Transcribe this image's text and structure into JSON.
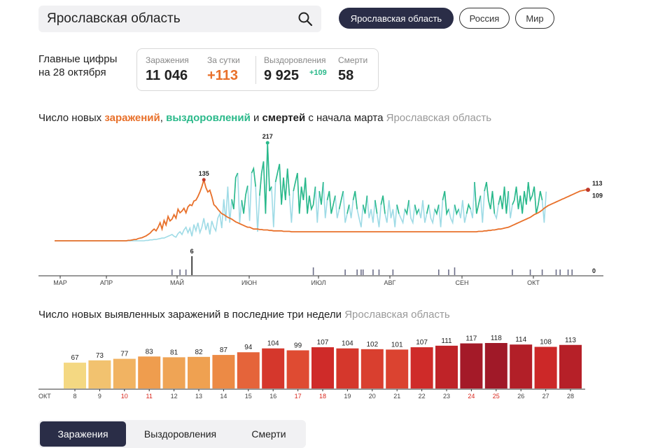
{
  "search": {
    "value": "Ярославская область"
  },
  "regions": [
    "Ярославская область",
    "Россия",
    "Мир"
  ],
  "main_figures": {
    "title_line1": "Главные цифры",
    "title_line2": "на 28 октября",
    "infections_label": "Заражения",
    "infections_value": "11 046",
    "per_day_label": "За сутки",
    "per_day_value": "+113",
    "recoveries_label": "Выздоровления",
    "recoveries_value": "9 925",
    "recoveries_delta": "+109",
    "deaths_label": "Смерти",
    "deaths_value": "58"
  },
  "line_section": {
    "t1": "Число новых ",
    "t2": "заражений",
    "t3": ", ",
    "t4": "выздоровлений",
    "t5": " и ",
    "t6": "смертей",
    "t7": " с начала марта",
    "region": "Ярославская область"
  },
  "bar_section": {
    "title": "Число новых выявленных заражений в последние три недели",
    "region": "Ярославская область"
  },
  "tabs": [
    "Заражения",
    "Выздоровления",
    "Смерти"
  ],
  "colors": {
    "infections": "#e8702a",
    "recoveries": "#2ab98a",
    "recoveries_light": "#9fdbe6",
    "deaths": "#6c6e88",
    "nav": "#2a2d47"
  },
  "chart_data": [
    {
      "type": "line",
      "x_ticks": [
        "МАР",
        "АПР",
        "МАЙ",
        "ИЮН",
        "ИЮЛ",
        "АВГ",
        "СЕН",
        "ОКТ"
      ],
      "series": [
        {
          "name": "заражений",
          "values": [
            0,
            0,
            0,
            0,
            0,
            0,
            0,
            0,
            0,
            0,
            0,
            0,
            0,
            0,
            0,
            0,
            0,
            0,
            0,
            0,
            0,
            0,
            0,
            0,
            0,
            0,
            0,
            0,
            0,
            0,
            0,
            0,
            0,
            0,
            0,
            0,
            0,
            1,
            1,
            2,
            3,
            3,
            5,
            6,
            7,
            9,
            11,
            14,
            17,
            22,
            26,
            22,
            30,
            40,
            26,
            45,
            35,
            54,
            44,
            48,
            58,
            50,
            70,
            62,
            66,
            72,
            62,
            75,
            80,
            78,
            88,
            90,
            98,
            108,
            120,
            135,
            118,
            108,
            112,
            98,
            80,
            76,
            70,
            65,
            60,
            58,
            55,
            52,
            50,
            48,
            45,
            42,
            40,
            38,
            36,
            34,
            32,
            30,
            30,
            28,
            26,
            26,
            26,
            25,
            25,
            24,
            24,
            24,
            23,
            23,
            22,
            22,
            22,
            22,
            22,
            21,
            21,
            21,
            21,
            20,
            20,
            20,
            20,
            20,
            20,
            20,
            20,
            20,
            20,
            20,
            20,
            20,
            20,
            20,
            20,
            20,
            20,
            20,
            20,
            20,
            20,
            20,
            20,
            20,
            20,
            20,
            20,
            20,
            20,
            20,
            20,
            20,
            20,
            20,
            20,
            20,
            20,
            20,
            20,
            20,
            20,
            20,
            20,
            20,
            20,
            20,
            20,
            20,
            20,
            20,
            20,
            20,
            20,
            20,
            20,
            20,
            20,
            20,
            20,
            20,
            20,
            20,
            20,
            20,
            20,
            20,
            20,
            20,
            20,
            20,
            20,
            20,
            20,
            20,
            20,
            20,
            20,
            20,
            20,
            20,
            20,
            20,
            20,
            20,
            20,
            20,
            20,
            20,
            20,
            20,
            20,
            20,
            20,
            21,
            21,
            21,
            22,
            22,
            23,
            23,
            24,
            24,
            25,
            26,
            26,
            27,
            28,
            29,
            30,
            32,
            34,
            36,
            38,
            40,
            42,
            44,
            46,
            48,
            50,
            52,
            55,
            58,
            60,
            62,
            65,
            68,
            72,
            75,
            78,
            80,
            82,
            84,
            86,
            88,
            90,
            92,
            94,
            96,
            98,
            100,
            102,
            104,
            106,
            108,
            110,
            111,
            112,
            113,
            113
          ]
        },
        {
          "name": "выздоровлений",
          "values": [
            0,
            0,
            0,
            0,
            0,
            0,
            0,
            0,
            0,
            0,
            0,
            0,
            0,
            0,
            0,
            0,
            0,
            0,
            0,
            0,
            0,
            0,
            0,
            0,
            0,
            0,
            0,
            0,
            0,
            0,
            0,
            0,
            0,
            0,
            0,
            0,
            0,
            0,
            0,
            0,
            0,
            0,
            0,
            0,
            0,
            0,
            1,
            1,
            2,
            2,
            3,
            3,
            4,
            5,
            6,
            6,
            8,
            10,
            12,
            14,
            10,
            8,
            16,
            20,
            14,
            24,
            30,
            18,
            28,
            10,
            36,
            22,
            40,
            18,
            30,
            50,
            24,
            40,
            14,
            44,
            30,
            22,
            50,
            60,
            28,
            92,
            44,
            120,
            40,
            92,
            70,
            140,
            150,
            40,
            90,
            60,
            102,
            122,
            44,
            150,
            160,
            120,
            20,
            100,
            150,
            176,
            60,
            217,
            110,
            120,
            30,
            130,
            150,
            170,
            80,
            140,
            90,
            160,
            100,
            40,
            110,
            130,
            150,
            60,
            120,
            90,
            140,
            60,
            100,
            70,
            80,
            120,
            40,
            110,
            80,
            130,
            50,
            90,
            110,
            60,
            80,
            100,
            50,
            70,
            90,
            110,
            40,
            60,
            80,
            50,
            90,
            110,
            70,
            50,
            30,
            80,
            60,
            100,
            50,
            70,
            40,
            90,
            60,
            30,
            80,
            100,
            60,
            40,
            90,
            50,
            70,
            30,
            80,
            60,
            50,
            40,
            70,
            60,
            90,
            50,
            40,
            80,
            60,
            70,
            50,
            90,
            40,
            60,
            80,
            50,
            40,
            70,
            60,
            80,
            30,
            90,
            110,
            60,
            70,
            50,
            40,
            80,
            60,
            70,
            50,
            90,
            40,
            60,
            80,
            70,
            50,
            130,
            60,
            80,
            100,
            40,
            110,
            130,
            90,
            70,
            110,
            60,
            50,
            80,
            100,
            70,
            120,
            60,
            110,
            50,
            80,
            90,
            120,
            70,
            100,
            60,
            110,
            80,
            130,
            90,
            100,
            120,
            60,
            80,
            110,
            90,
            40,
            109
          ]
        },
        {
          "name": "смертей",
          "values": [
            0,
            0,
            0,
            0,
            0,
            0,
            0,
            0,
            0,
            0,
            0,
            0,
            0,
            0,
            0,
            0,
            0,
            0,
            0,
            0,
            0,
            0,
            0,
            0,
            0,
            0,
            0,
            0,
            0,
            0,
            0,
            0,
            0,
            0,
            0,
            0,
            0,
            0,
            0,
            0,
            0,
            0,
            0,
            0,
            0,
            0,
            0,
            0,
            0,
            0,
            0,
            0,
            0,
            0,
            0,
            0,
            0,
            0,
            0,
            1,
            0,
            0,
            0,
            1,
            0,
            0,
            1,
            0,
            0,
            6,
            0,
            0,
            0,
            0,
            0,
            0,
            0,
            0,
            0,
            0,
            0,
            0,
            0,
            0,
            0,
            0,
            0,
            0,
            0,
            0,
            0,
            0,
            0,
            0,
            0,
            0,
            0,
            0,
            0,
            0,
            0,
            0,
            0,
            0,
            0,
            0,
            0,
            0,
            0,
            0,
            0,
            0,
            0,
            0,
            0,
            0,
            0,
            0,
            0,
            0,
            0,
            0,
            0,
            0,
            0,
            0,
            0,
            0,
            0,
            0,
            2,
            0,
            0,
            0,
            0,
            0,
            0,
            0,
            0,
            0,
            0,
            0,
            0,
            0,
            0,
            0,
            1,
            0,
            0,
            0,
            0,
            0,
            1,
            0,
            1,
            1,
            0,
            0,
            0,
            0,
            1,
            0,
            0,
            1,
            0,
            0,
            0,
            0,
            0,
            0,
            1,
            0,
            0,
            0,
            0,
            0,
            0,
            0,
            0,
            0,
            0,
            0,
            0,
            0,
            0,
            0,
            0,
            0,
            0,
            0,
            0,
            0,
            0,
            1,
            0,
            0,
            0,
            0,
            1,
            0,
            0,
            2,
            0,
            0,
            0,
            0,
            0,
            0,
            0,
            0,
            0,
            0,
            0,
            0,
            0,
            0,
            0,
            0,
            0,
            0,
            0,
            0,
            0,
            0,
            0,
            0,
            0,
            0,
            0,
            0,
            1,
            0,
            0,
            0,
            0,
            0,
            0,
            0,
            0,
            1,
            0,
            0,
            0,
            0,
            0,
            1,
            0,
            0,
            0,
            0,
            0,
            0,
            1,
            0,
            1,
            0,
            0,
            0,
            1,
            0,
            1,
            0,
            0
          ]
        }
      ],
      "labels": {
        "infections_peak": "135",
        "recoveries_peak": "217",
        "deaths_peak": "6",
        "infections_last": "113",
        "recoveries_last": "109",
        "deaths_last": "0"
      }
    },
    {
      "type": "bar",
      "xlabel": "ОКТ",
      "categories": [
        "8",
        "9",
        "10",
        "11",
        "12",
        "13",
        "14",
        "15",
        "16",
        "17",
        "18",
        "19",
        "20",
        "21",
        "22",
        "23",
        "24",
        "25",
        "26",
        "27",
        "28"
      ],
      "values": [
        67,
        73,
        77,
        83,
        81,
        82,
        87,
        94,
        104,
        99,
        107,
        104,
        102,
        101,
        107,
        111,
        117,
        118,
        114,
        108,
        113
      ],
      "weekend": [
        false,
        false,
        true,
        true,
        false,
        false,
        false,
        false,
        false,
        true,
        true,
        false,
        false,
        false,
        false,
        false,
        true,
        true,
        false,
        false,
        false
      ]
    }
  ]
}
